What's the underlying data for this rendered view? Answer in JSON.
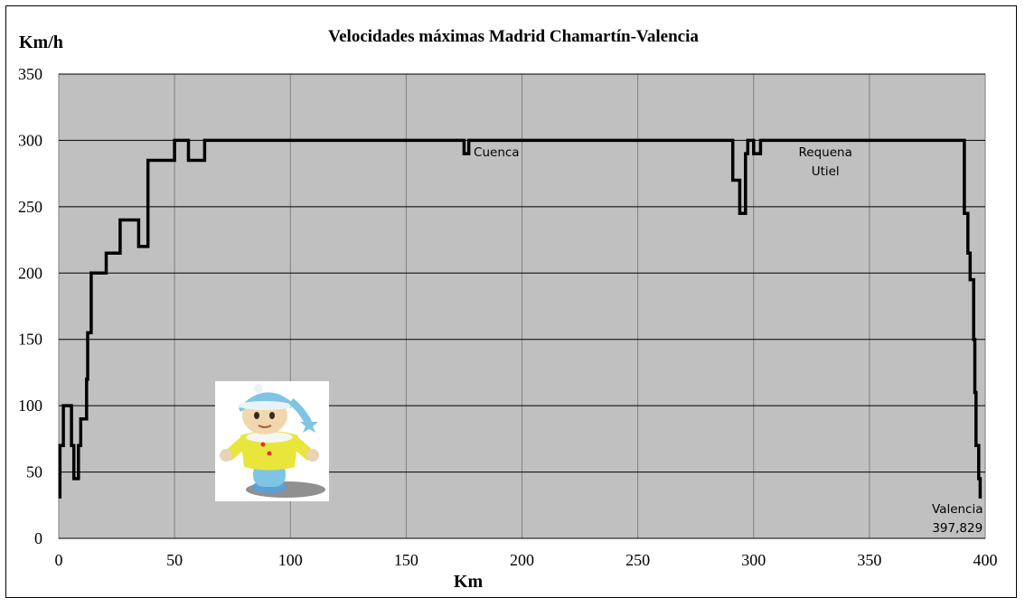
{
  "chart_data": {
    "type": "line",
    "title": "Velocidades máximas Madrid Chamartín-Valencia",
    "xlabel": "Km",
    "ylabel": "Km/h",
    "xlim": [
      0,
      400
    ],
    "ylim": [
      0,
      350
    ],
    "xticks": [
      0,
      50,
      100,
      150,
      200,
      250,
      300,
      350,
      400
    ],
    "yticks": [
      0,
      50,
      100,
      150,
      200,
      250,
      300,
      350
    ],
    "grid": true,
    "legend": "none",
    "colors": {
      "plot_background": "#c0c0c0",
      "line": "#000000",
      "grid": "#808080"
    },
    "series": [
      {
        "points": [
          [
            0.5,
            30
          ],
          [
            0.5,
            70
          ],
          [
            2,
            70
          ],
          [
            2,
            100
          ],
          [
            5.5,
            100
          ],
          [
            5.5,
            70
          ],
          [
            6.5,
            70
          ],
          [
            6.5,
            45
          ],
          [
            8.5,
            45
          ],
          [
            8.5,
            70
          ],
          [
            9.5,
            70
          ],
          [
            9.5,
            90
          ],
          [
            12,
            90
          ],
          [
            12,
            120
          ],
          [
            12.5,
            120
          ],
          [
            12.5,
            155
          ],
          [
            14,
            155
          ],
          [
            14,
            200
          ],
          [
            20.5,
            200
          ],
          [
            20.5,
            215
          ],
          [
            26.5,
            215
          ],
          [
            26.5,
            240
          ],
          [
            34.5,
            240
          ],
          [
            34.5,
            220
          ],
          [
            38.5,
            220
          ],
          [
            38.5,
            285
          ],
          [
            50,
            285
          ],
          [
            50,
            300
          ],
          [
            56,
            300
          ],
          [
            56,
            285
          ],
          [
            63,
            285
          ],
          [
            63,
            300
          ],
          [
            175,
            300
          ],
          [
            175,
            290
          ],
          [
            177,
            290
          ],
          [
            177,
            300
          ],
          [
            291,
            300
          ],
          [
            291,
            270
          ],
          [
            294,
            270
          ],
          [
            294,
            245
          ],
          [
            296.5,
            245
          ],
          [
            296.5,
            290
          ],
          [
            297.5,
            290
          ],
          [
            297.5,
            300
          ],
          [
            300,
            300
          ],
          [
            300,
            290
          ],
          [
            303,
            290
          ],
          [
            303,
            300
          ],
          [
            391,
            300
          ],
          [
            391,
            245
          ],
          [
            392.5,
            245
          ],
          [
            392.5,
            215
          ],
          [
            393.5,
            215
          ],
          [
            393.5,
            195
          ],
          [
            395,
            195
          ],
          [
            395,
            150
          ],
          [
            395.5,
            150
          ],
          [
            395.5,
            110
          ],
          [
            396,
            110
          ],
          [
            396,
            70
          ],
          [
            397.2,
            70
          ],
          [
            397.2,
            45
          ],
          [
            397.829,
            45
          ],
          [
            397.829,
            30
          ]
        ]
      }
    ],
    "annotations": [
      {
        "lines": [
          "Cuenca"
        ],
        "x": 189,
        "y": 288
      },
      {
        "lines": [
          "Requena",
          "Utiel"
        ],
        "x": 331,
        "y": 288
      },
      {
        "lines": [
          "Valencia",
          "397,829"
        ],
        "x": 388,
        "y": 19
      }
    ]
  },
  "image": {
    "description_icon": "toy-doll-figure-image"
  }
}
